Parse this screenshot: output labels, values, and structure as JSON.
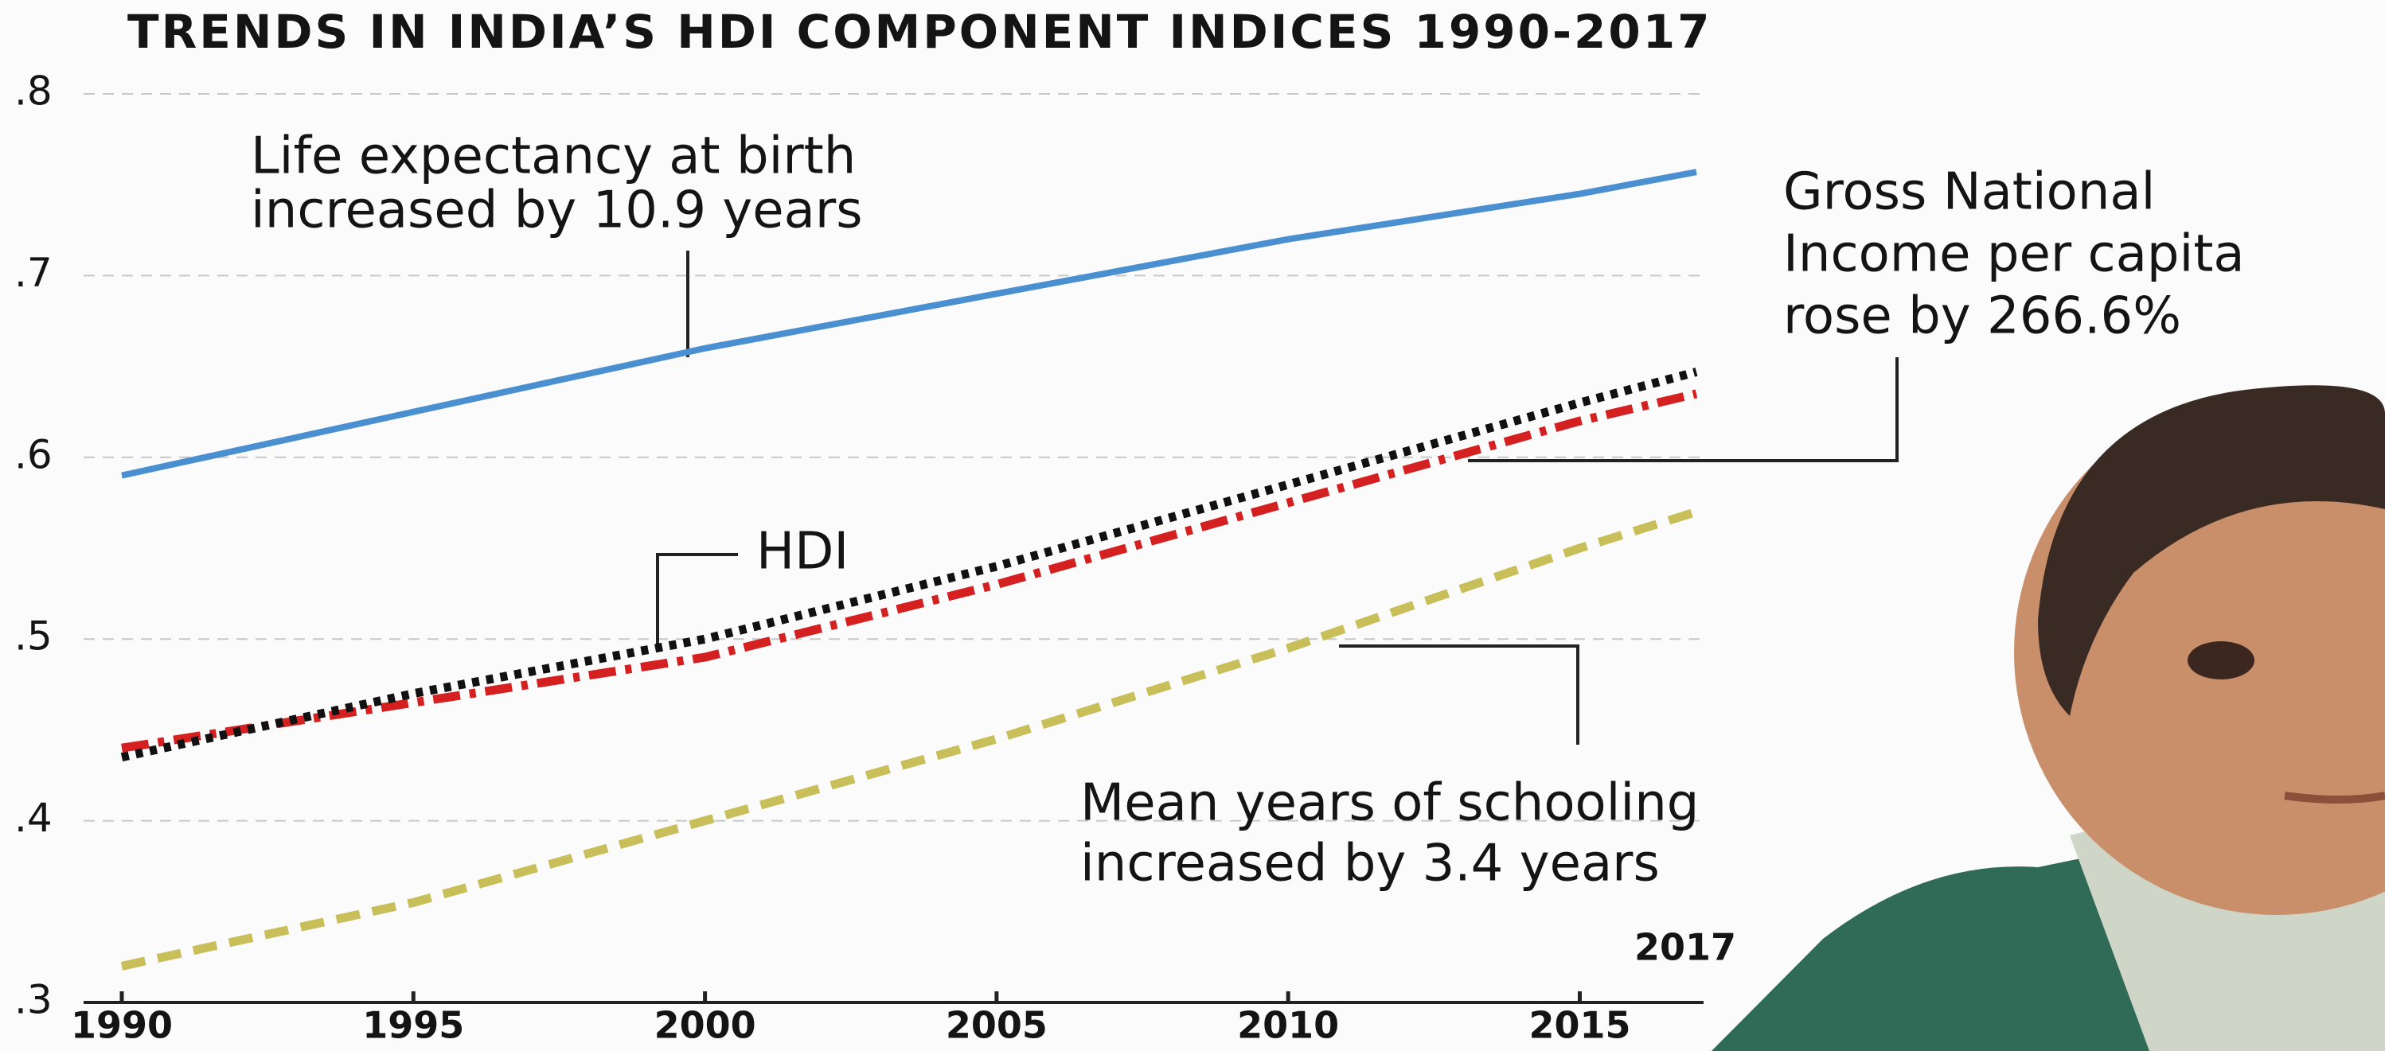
{
  "chart_data": {
    "type": "line",
    "title": "TRENDS IN INDIA’S HDI COMPONENT INDICES 1990-2017",
    "x": [
      1990,
      1995,
      2000,
      2005,
      2010,
      2015,
      2017
    ],
    "xlim": [
      1990,
      2017
    ],
    "xticks": [
      1990,
      1995,
      2000,
      2005,
      2010,
      2015
    ],
    "ylim": [
      0.3,
      0.8
    ],
    "yticks": [
      {
        "value": 0.3,
        "label": ".3"
      },
      {
        "value": 0.4,
        "label": ".4"
      },
      {
        "value": 0.5,
        "label": ".5"
      },
      {
        "value": 0.6,
        "label": ".6"
      },
      {
        "value": 0.7,
        "label": ".7"
      },
      {
        "value": 0.8,
        "label": ".8"
      }
    ],
    "grid": true,
    "series": [
      {
        "color": "#4a8fd0",
        "style": "solid",
        "values": [
          0.59,
          0.625,
          0.66,
          0.69,
          0.72,
          0.745,
          0.757
        ]
      },
      {
        "color": "#d42020",
        "style": "dashdot",
        "values": [
          0.44,
          0.465,
          0.49,
          0.53,
          0.575,
          0.62,
          0.635
        ]
      },
      {
        "name": "HDI",
        "color": "#111111",
        "style": "dotted",
        "values": [
          0.435,
          0.47,
          0.5,
          0.54,
          0.585,
          0.63,
          0.647
        ]
      },
      {
        "color": "#c8bf5a",
        "style": "dashed",
        "values": [
          0.32,
          0.355,
          0.4,
          0.445,
          0.495,
          0.55,
          0.57
        ]
      }
    ],
    "annotations": [
      {
        "lines": [
          "Life expectancy at birth",
          "increased by 10.9 years"
        ]
      },
      {
        "lines": [
          "Gross National",
          "Income per capita",
          "rose by 266.6%"
        ]
      },
      {
        "lines": [
          "Mean years of schooling",
          "increased by 3.4 years"
        ]
      },
      {
        "lines": [
          "2017"
        ]
      }
    ]
  }
}
